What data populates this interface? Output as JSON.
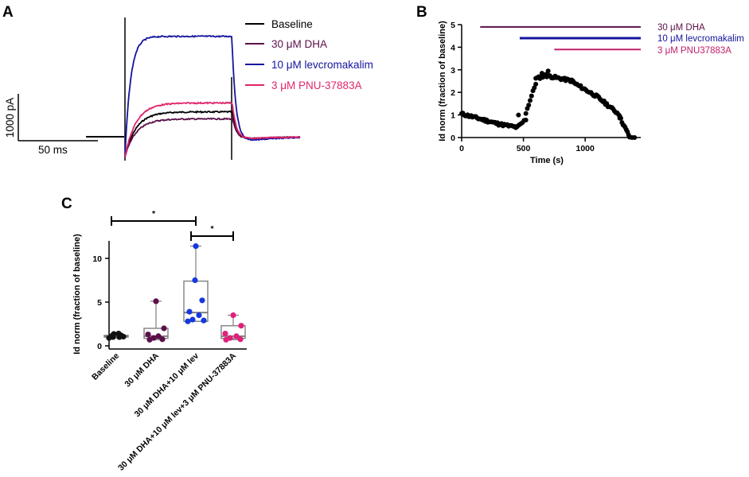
{
  "figure": {
    "panel_labels": [
      "A",
      "B",
      "C"
    ]
  },
  "chart_data": [
    {
      "type": "line",
      "panel": "A",
      "title": "",
      "series": [
        {
          "name": "Baseline",
          "color": "#000000",
          "steady_pA": 530
        },
        {
          "name": "30 μM DHA",
          "color": "#5c1049",
          "steady_pA": 380
        },
        {
          "name": "10 μM levcromakalim",
          "color": "#14149e",
          "steady_pA": 2140
        },
        {
          "name": "3 μM PNU-37883A",
          "color": "#e0256b",
          "steady_pA": 720
        }
      ],
      "scale_bar": {
        "current_label": "1000 pA",
        "time_label": "50 ms"
      }
    },
    {
      "type": "scatter",
      "panel": "B",
      "title": "",
      "xlabel": "Time (s)",
      "ylabel": "Id norm (fraction of baseline)",
      "xlim": [
        0,
        1450
      ],
      "ylim": [
        0,
        5
      ],
      "xticks": [
        0,
        500,
        1000
      ],
      "yticks": [
        0,
        1,
        2,
        3,
        4,
        5
      ],
      "bars": [
        {
          "label": "30 μM DHA",
          "color": "#5c1049",
          "start": 150,
          "end": 1450,
          "level": 4.9,
          "width": 2
        },
        {
          "label": "10 μM levcromakalim",
          "color": "#14149e",
          "start": 470,
          "end": 1450,
          "level": 4.4,
          "width": 3
        },
        {
          "label": "3 μM PNU37883A",
          "color": "#c0206b",
          "start": 750,
          "end": 1450,
          "level": 3.9,
          "width": 2
        }
      ],
      "segments": [
        {
          "t0": 0,
          "t1": 300,
          "y0": 1.05,
          "y1": 0.6,
          "n": 32
        },
        {
          "t0": 300,
          "t1": 450,
          "y0": 0.6,
          "y1": 0.45,
          "n": 14
        },
        {
          "t0": 450,
          "t1": 520,
          "y0": 0.45,
          "y1": 0.8,
          "n": 6
        },
        {
          "t0": 520,
          "t1": 600,
          "y0": 1.1,
          "y1": 2.4,
          "n": 8
        },
        {
          "t0": 600,
          "t1": 680,
          "y0": 2.6,
          "y1": 2.75,
          "n": 8
        },
        {
          "t0": 680,
          "t1": 900,
          "y0": 2.75,
          "y1": 2.5,
          "n": 24
        },
        {
          "t0": 900,
          "t1": 1100,
          "y0": 2.45,
          "y1": 1.8,
          "n": 20
        },
        {
          "t0": 1100,
          "t1": 1280,
          "y0": 1.8,
          "y1": 1.0,
          "n": 18
        },
        {
          "t0": 1280,
          "t1": 1360,
          "y0": 0.9,
          "y1": 0.03,
          "n": 10
        }
      ],
      "extra_points": [
        {
          "t": 460,
          "y": 1.0
        },
        {
          "t": 700,
          "y": 2.95
        },
        {
          "t": 650,
          "y": 2.85
        },
        {
          "t": 1400,
          "y": 0.0
        },
        {
          "t": 1380,
          "y": 0.0
        }
      ]
    },
    {
      "type": "box",
      "panel": "C",
      "title": "",
      "ylabel": "Id norm (fraction of baseline)",
      "ylim": [
        0,
        12
      ],
      "yticks": [
        0,
        5,
        10
      ],
      "categories": [
        "Baseline",
        "30 μM DHA",
        "30 μM DHA+10 μM lev",
        "30 μM DHA+10 μM lev+3 μM PNU-37883A"
      ],
      "groups": [
        {
          "color": "#111111",
          "min": 0.9,
          "q1": 1.0,
          "median": 1.05,
          "q3": 1.2,
          "max": 1.4,
          "points": [
            0.9,
            1.0,
            1.0,
            1.05,
            1.1,
            1.2,
            1.35,
            1.4
          ],
          "offsets": [
            -9,
            -4,
            4,
            9,
            -6,
            6,
            -3,
            3
          ]
        },
        {
          "color": "#5c1049",
          "min": 0.7,
          "q1": 0.85,
          "median": 1.1,
          "q3": 2.0,
          "max": 5.1,
          "points": [
            0.7,
            0.75,
            0.9,
            1.1,
            1.3,
            2.0,
            5.1
          ],
          "offsets": [
            -8,
            8,
            -3,
            3,
            -10,
            10,
            0
          ]
        },
        {
          "color": "#1538e0",
          "min": 2.8,
          "q1": 2.8,
          "median": 3.8,
          "q3": 7.4,
          "max": 11.4,
          "points": [
            2.8,
            2.9,
            3.0,
            3.5,
            3.9,
            5.2,
            7.5,
            11.4
          ],
          "offsets": [
            -10,
            10,
            -4,
            4,
            -8,
            8,
            -1,
            0
          ]
        },
        {
          "color": "#e0207a",
          "min": 0.7,
          "q1": 0.85,
          "median": 1.1,
          "q3": 2.3,
          "max": 3.5,
          "points": [
            0.7,
            0.75,
            0.9,
            1.1,
            1.4,
            2.3,
            3.5
          ],
          "offsets": [
            -9,
            9,
            -4,
            4,
            -10,
            10,
            0
          ]
        }
      ],
      "significance": [
        {
          "from": 0,
          "to": 2,
          "label": "*"
        },
        {
          "from": 2,
          "to": 3,
          "label": "*"
        }
      ]
    }
  ]
}
